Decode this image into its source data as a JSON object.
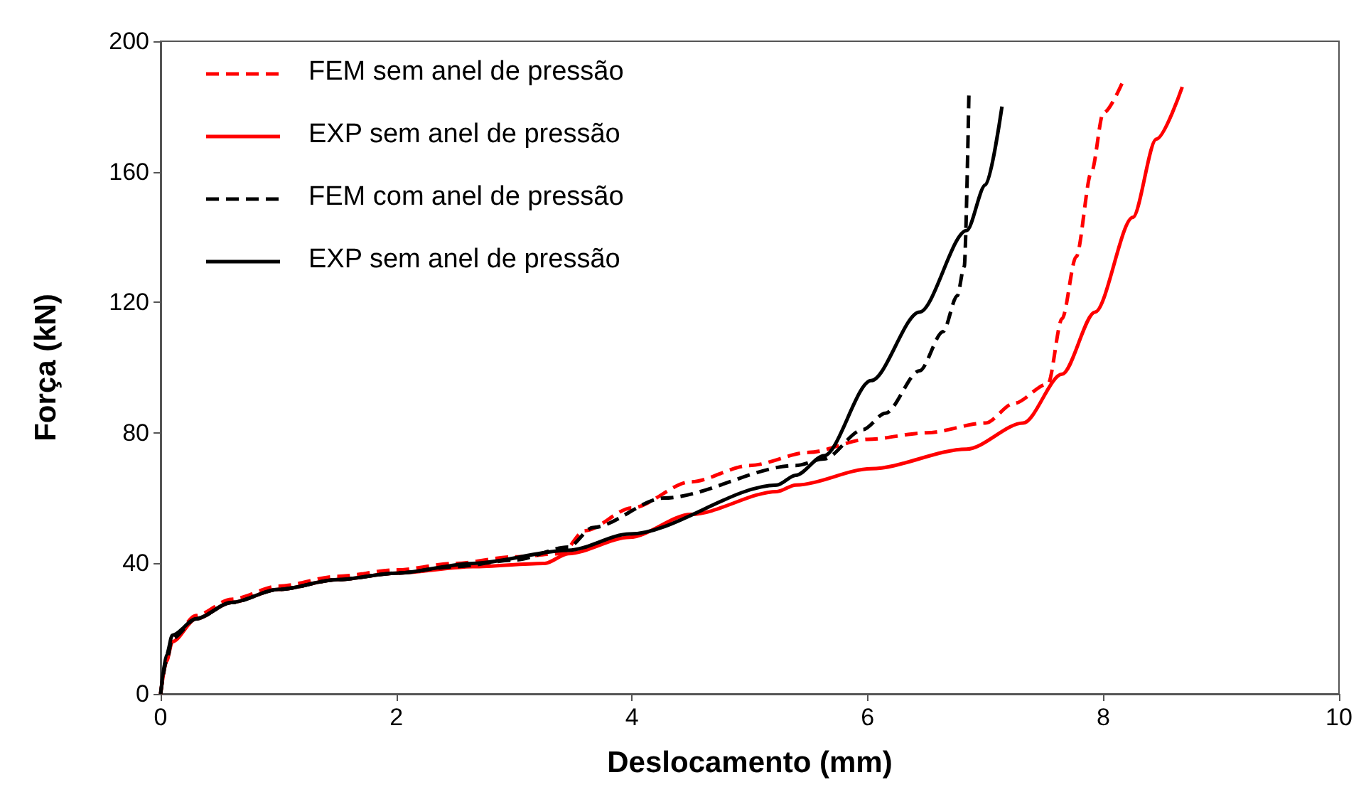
{
  "chart_data": {
    "type": "line",
    "xlabel": "Deslocamento (mm)",
    "ylabel": "Força (kN)",
    "xlim": [
      0,
      10
    ],
    "xticks": [
      0,
      2,
      4,
      6,
      8,
      10
    ],
    "ylim": [
      0,
      200
    ],
    "yticks": [
      0,
      40,
      80,
      120,
      160,
      200
    ],
    "grid": false,
    "legend": "top left",
    "marker": "none",
    "series": [
      {
        "name": "FEM sem anel de pressão",
        "color": "#ff0000",
        "line_style": "dashed",
        "x": [
          0,
          0.05,
          0.1,
          0.3,
          0.6,
          1,
          1.5,
          2,
          2.5,
          3,
          3.4,
          3.6,
          4,
          4.5,
          5,
          5.5,
          6,
          6.5,
          7,
          7.24,
          7.53,
          7.65,
          7.77,
          7.9,
          8.0,
          8.17
        ],
        "values": [
          0,
          10,
          17,
          24,
          29,
          33,
          36,
          38,
          40,
          42,
          43,
          50,
          57,
          65,
          70,
          74,
          78,
          80,
          83,
          89,
          95,
          115,
          134,
          160,
          178,
          188
        ]
      },
      {
        "name": "EXP sem anel de pressão",
        "color": "#ff0000",
        "line_style": "solid",
        "x": [
          0,
          0.05,
          0.1,
          0.3,
          0.6,
          1,
          1.5,
          2,
          2.65,
          3.26,
          3.46,
          3.98,
          4.5,
          5.23,
          5.39,
          6.03,
          6.84,
          7.32,
          7.65,
          7.93,
          8.25,
          8.45,
          8.67
        ],
        "values": [
          0,
          10,
          16,
          23,
          28,
          32,
          35,
          37,
          39,
          40,
          43,
          48,
          55,
          62,
          64,
          69,
          75,
          83,
          98,
          117,
          146,
          170,
          186
        ]
      },
      {
        "name": "FEM com anel de pressão",
        "color": "#000000",
        "line_style": "dashed",
        "x": [
          0,
          0.05,
          0.1,
          0.3,
          0.6,
          1,
          1.5,
          2,
          2.5,
          3,
          3.46,
          3.67,
          4.27,
          5.39,
          5.63,
          5.96,
          6.15,
          6.44,
          6.64,
          6.76,
          6.82,
          6.86
        ],
        "values": [
          0,
          10,
          17,
          23,
          28,
          32,
          35,
          37,
          39,
          41,
          45,
          51,
          60,
          70,
          72,
          81,
          86,
          99,
          111,
          122,
          131,
          185
        ]
      },
      {
        "name": "EXP sem anel de pressão",
        "color": "#000000",
        "line_style": "solid",
        "x": [
          0,
          0.05,
          0.1,
          0.3,
          0.6,
          1,
          1.5,
          2,
          2.65,
          3.46,
          3.98,
          5.23,
          5.39,
          5.63,
          6.03,
          6.44,
          6.84,
          7.0,
          7.14
        ],
        "values": [
          0,
          12,
          18,
          23,
          28,
          32,
          35,
          37,
          40,
          44,
          49,
          64,
          67,
          73,
          96,
          117,
          142,
          156,
          180
        ]
      }
    ]
  }
}
